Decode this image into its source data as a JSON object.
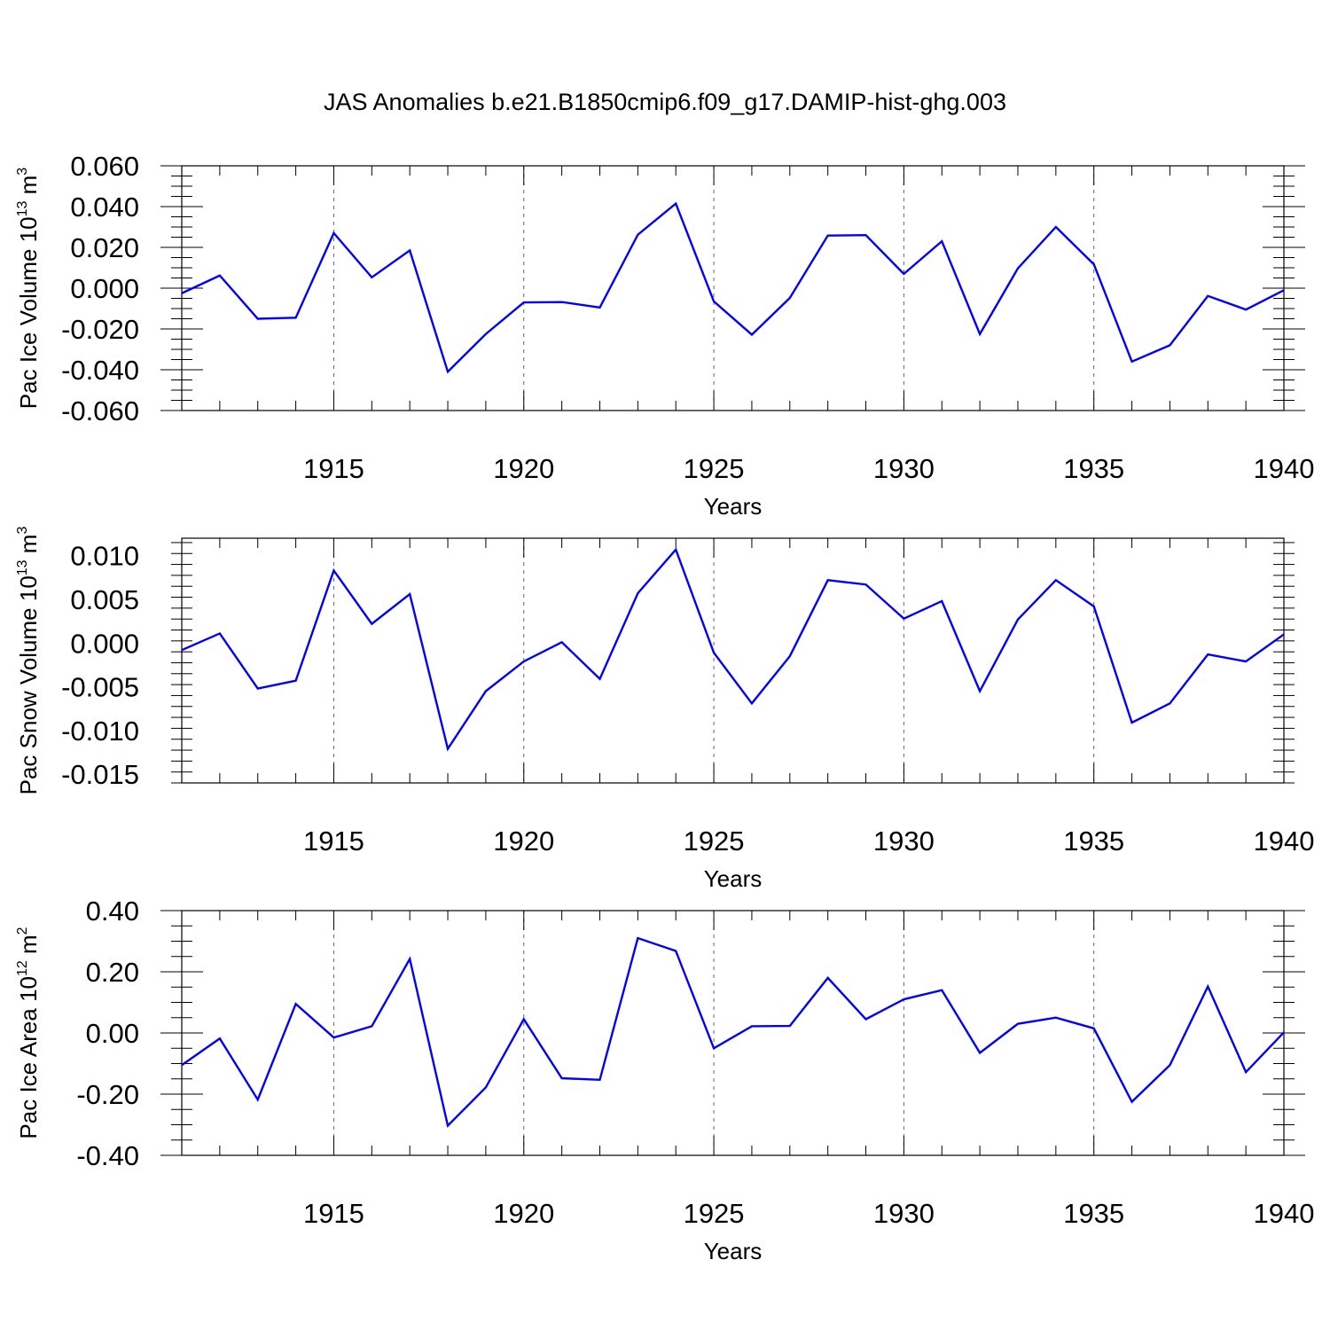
{
  "figure": {
    "title": "JAS Anomalies b.e21.B1850cmip6.f09_g17.DAMIP-hist-ghg.003"
  },
  "chart_data": [
    {
      "type": "line",
      "xlabel": "Years",
      "ylabel": "Pac Ice Volume 10",
      "ylabel_exp": "13",
      "ylabel_unit": " m",
      "ylabel_unit_exp": "3",
      "xlim": [
        1911,
        1940
      ],
      "ylim": [
        -0.06,
        0.06
      ],
      "x_ticks": [
        "1915",
        "1920",
        "1925",
        "1930",
        "1935",
        "1940"
      ],
      "y_ticks": [
        "0.060",
        "0.040",
        "0.020",
        "0.000",
        "-0.020",
        "-0.040",
        "-0.060"
      ],
      "grid": "dashed vertical at major x ticks",
      "line_color": "#0000ff",
      "x": [
        1911,
        1912,
        1913,
        1914,
        1915,
        1916,
        1917,
        1918,
        1919,
        1920,
        1921,
        1922,
        1923,
        1924,
        1925,
        1926,
        1927,
        1928,
        1929,
        1930,
        1931,
        1932,
        1933,
        1934,
        1935,
        1936,
        1937,
        1938,
        1939,
        1940
      ],
      "values": [
        -0.0025,
        0.0062,
        -0.015,
        -0.0145,
        0.027,
        0.0053,
        0.0185,
        -0.041,
        -0.0225,
        -0.007,
        -0.0068,
        -0.0095,
        0.0262,
        0.0415,
        -0.0065,
        -0.0228,
        -0.0048,
        0.0258,
        0.026,
        0.007,
        0.023,
        -0.0225,
        0.0097,
        0.03,
        0.0117,
        -0.036,
        -0.028,
        -0.0038,
        -0.0105,
        -0.001
      ]
    },
    {
      "type": "line",
      "xlabel": "Years",
      "ylabel": "Pac Snow Volume 10",
      "ylabel_exp": "13",
      "ylabel_unit": " m",
      "ylabel_unit_exp": "3",
      "xlim": [
        1911,
        1940
      ],
      "ylim": [
        -0.016,
        0.012
      ],
      "x_ticks": [
        "1915",
        "1920",
        "1925",
        "1930",
        "1935",
        "1940"
      ],
      "y_ticks": [
        "0.010",
        "0.005",
        "0.000",
        "-0.005",
        "-0.010",
        "-0.015"
      ],
      "grid": "dashed vertical at major x ticks",
      "line_color": "#0000ff",
      "x": [
        1911,
        1912,
        1913,
        1914,
        1915,
        1916,
        1917,
        1918,
        1919,
        1920,
        1921,
        1922,
        1923,
        1924,
        1925,
        1926,
        1927,
        1928,
        1929,
        1930,
        1931,
        1932,
        1933,
        1934,
        1935,
        1936,
        1937,
        1938,
        1939,
        1940
      ],
      "values": [
        -0.0008,
        0.0011,
        -0.0052,
        -0.0043,
        0.0083,
        0.0022,
        0.0056,
        -0.0121,
        -0.0055,
        -0.0021,
        0.0001,
        -0.0041,
        0.0057,
        0.0107,
        -0.0011,
        -0.0069,
        -0.0015,
        0.0072,
        0.0067,
        0.0028,
        0.0048,
        -0.0055,
        0.0027,
        0.0072,
        0.0042,
        -0.0091,
        -0.0069,
        -0.0013,
        -0.0021,
        0.001
      ]
    },
    {
      "type": "line",
      "xlabel": "Years",
      "ylabel": "Pac Ice Area 10",
      "ylabel_exp": "12",
      "ylabel_unit": " m",
      "ylabel_unit_exp": "2",
      "xlim": [
        1911,
        1940
      ],
      "ylim": [
        -0.4,
        0.4
      ],
      "x_ticks": [
        "1915",
        "1920",
        "1925",
        "1930",
        "1935",
        "1940"
      ],
      "y_ticks": [
        "0.40",
        "0.20",
        "0.00",
        "-0.20",
        "-0.40"
      ],
      "grid": "dashed vertical at major x ticks",
      "line_color": "#0000ff",
      "x": [
        1911,
        1912,
        1913,
        1914,
        1915,
        1916,
        1917,
        1918,
        1919,
        1920,
        1921,
        1922,
        1923,
        1924,
        1925,
        1926,
        1927,
        1928,
        1929,
        1930,
        1931,
        1932,
        1933,
        1934,
        1935,
        1936,
        1937,
        1938,
        1939,
        1940
      ],
      "values": [
        -0.105,
        -0.018,
        -0.218,
        0.095,
        -0.015,
        0.022,
        0.242,
        -0.303,
        -0.178,
        0.045,
        -0.148,
        -0.153,
        0.31,
        0.268,
        -0.05,
        0.022,
        0.023,
        0.18,
        0.045,
        0.11,
        0.14,
        -0.065,
        0.03,
        0.05,
        0.015,
        -0.225,
        -0.105,
        0.152,
        -0.128,
        0.002
      ]
    }
  ]
}
